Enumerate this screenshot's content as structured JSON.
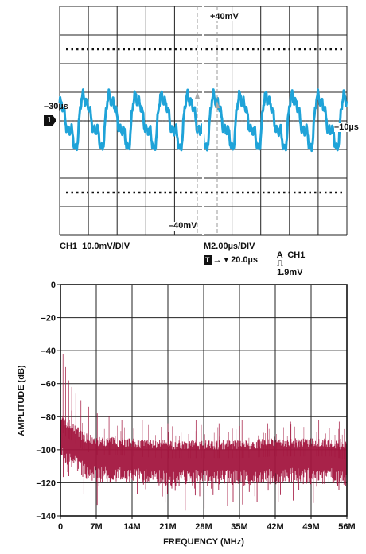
{
  "chart_data": [
    {
      "type": "line",
      "scope": {
        "marker_top": "+40mV",
        "marker_bottom": "–40mV",
        "marker_left": "–30µs",
        "marker_right": "–10µs",
        "channel_marker": "1",
        "channel_scale": "CH1  10.0mV/DIV",
        "timebase": "M2.00µs/DIV",
        "trigger_label": "A  CH1",
        "trigger_symbol": "⎍",
        "trigger_level": "1.9mV",
        "trigger_box": "T",
        "trigger_delay": "→ ▾ 20.0µs"
      },
      "x_divisions": 10,
      "y_divisions": 8,
      "signal_periods": 11,
      "signal_peak_div": 0.95,
      "color": "#1fa3d8"
    },
    {
      "type": "line",
      "xlabel": "FREQUENCY (MHz)",
      "ylabel": "AMPLITUDE (dB)",
      "xlim": [
        0,
        56
      ],
      "ylim": [
        -140,
        0
      ],
      "x_ticks": [
        "0",
        "7M",
        "14M",
        "21M",
        "28M",
        "35M",
        "42M",
        "49M",
        "56M"
      ],
      "y_ticks": [
        "0",
        "–20",
        "–40",
        "–60",
        "–80",
        "–100",
        "–120",
        "–140"
      ],
      "grid": true,
      "color": "#a3163f",
      "series": [
        {
          "x": [
            0,
            0.5,
            1,
            1.5,
            2,
            2.5,
            3,
            3.5,
            4,
            5,
            6,
            7,
            10,
            14,
            20,
            28,
            35,
            42,
            49,
            53,
            56
          ],
          "values": [
            -88,
            -90,
            -92,
            -93,
            -94,
            -95,
            -96,
            -97,
            -99,
            -101,
            -102,
            -103,
            -103,
            -104,
            -105,
            -105,
            -105,
            -104,
            -104,
            -104,
            -106
          ]
        }
      ],
      "spurs": [
        {
          "x": 0.5,
          "y": -42
        },
        {
          "x": 1.0,
          "y": -50
        },
        {
          "x": 1.6,
          "y": -58
        },
        {
          "x": 2.2,
          "y": -62
        },
        {
          "x": 3.0,
          "y": -66
        },
        {
          "x": 4.0,
          "y": -70
        },
        {
          "x": 5.5,
          "y": -74
        },
        {
          "x": 7.2,
          "y": -78
        },
        {
          "x": 9.5,
          "y": -80
        },
        {
          "x": 12.0,
          "y": -82
        },
        {
          "x": 16.0,
          "y": -82
        },
        {
          "x": 21.0,
          "y": -84
        },
        {
          "x": 26.5,
          "y": -82
        },
        {
          "x": 31.0,
          "y": -84
        },
        {
          "x": 35.5,
          "y": -82
        },
        {
          "x": 40.5,
          "y": -84
        },
        {
          "x": 45.0,
          "y": -83
        },
        {
          "x": 50.5,
          "y": -82
        },
        {
          "x": 54.5,
          "y": -83
        }
      ]
    }
  ]
}
